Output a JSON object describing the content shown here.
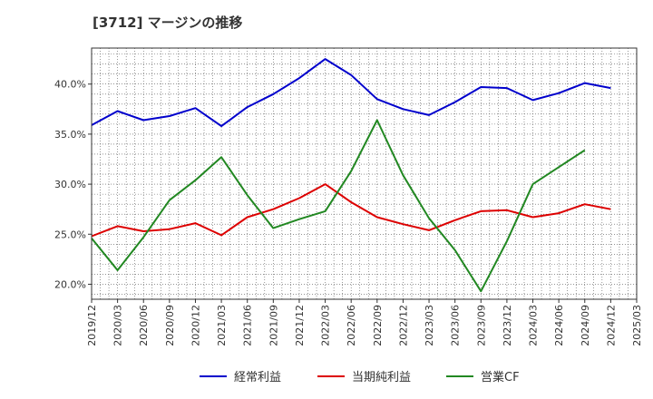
{
  "title": "[3712]  マージンの推移",
  "chart_data": {
    "type": "line",
    "x": [
      "2019/12",
      "2020/03",
      "2020/06",
      "2020/09",
      "2020/12",
      "2021/03",
      "2021/06",
      "2021/09",
      "2021/12",
      "2022/03",
      "2022/06",
      "2022/09",
      "2022/12",
      "2023/03",
      "2023/06",
      "2023/09",
      "2023/12",
      "2024/03",
      "2024/06",
      "2024/09",
      "2024/12",
      "2025/03"
    ],
    "ylim": [
      18.5,
      43.6
    ],
    "yticks": [
      20.0,
      25.0,
      30.0,
      35.0,
      40.0
    ],
    "ytick_labels": [
      "20.0%",
      "25.0%",
      "30.0%",
      "35.0%",
      "40.0%"
    ],
    "grid": true,
    "legend_position": "bottom",
    "series": [
      {
        "name": "経常利益",
        "color": "#0000cc",
        "values": [
          35.9,
          37.3,
          36.4,
          36.8,
          37.6,
          35.8,
          37.7,
          39.0,
          40.6,
          42.5,
          40.9,
          38.5,
          37.5,
          36.9,
          38.2,
          39.7,
          39.6,
          38.4,
          39.1,
          40.1,
          39.6,
          null
        ]
      },
      {
        "name": "当期純利益",
        "color": "#dd0000",
        "values": [
          24.8,
          25.8,
          25.3,
          25.5,
          26.1,
          24.9,
          26.7,
          27.5,
          28.6,
          30.0,
          28.2,
          26.7,
          26.0,
          25.4,
          26.4,
          27.3,
          27.4,
          26.7,
          27.1,
          28.0,
          27.5,
          null
        ]
      },
      {
        "name": "営業CF",
        "color": "#228822",
        "values": [
          24.6,
          21.4,
          24.7,
          28.4,
          30.4,
          32.7,
          28.9,
          25.6,
          26.5,
          27.3,
          31.3,
          36.4,
          30.9,
          26.6,
          23.4,
          19.3,
          24.3,
          30.0,
          31.7,
          33.4,
          null,
          null
        ]
      }
    ]
  }
}
